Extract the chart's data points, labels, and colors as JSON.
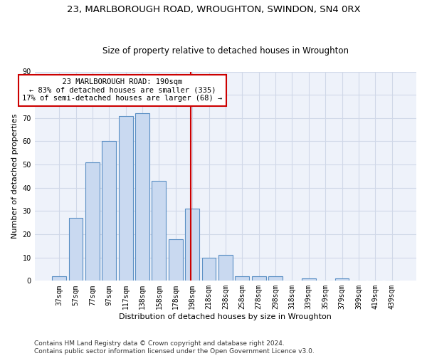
{
  "title1": "23, MARLBOROUGH ROAD, WROUGHTON, SWINDON, SN4 0RX",
  "title2": "Size of property relative to detached houses in Wroughton",
  "xlabel": "Distribution of detached houses by size in Wroughton",
  "ylabel": "Number of detached properties",
  "bar_labels": [
    "37sqm",
    "57sqm",
    "77sqm",
    "97sqm",
    "117sqm",
    "138sqm",
    "158sqm",
    "178sqm",
    "198sqm",
    "218sqm",
    "238sqm",
    "258sqm",
    "278sqm",
    "298sqm",
    "318sqm",
    "339sqm",
    "359sqm",
    "379sqm",
    "399sqm",
    "419sqm",
    "439sqm"
  ],
  "bar_values": [
    2,
    27,
    51,
    60,
    71,
    72,
    43,
    18,
    31,
    10,
    11,
    2,
    2,
    2,
    0,
    1,
    0,
    1,
    0,
    0,
    0
  ],
  "bar_color": "#c9d9f0",
  "bar_edge_color": "#5a8fc4",
  "vline_x": 7.9,
  "vline_color": "#cc0000",
  "annotation_text": "  23 MARLBOROUGH ROAD: 190sqm  \n← 83% of detached houses are smaller (335)\n17% of semi-detached houses are larger (68) →",
  "annotation_box_color": "#cc0000",
  "ylim": [
    0,
    90
  ],
  "yticks": [
    0,
    10,
    20,
    30,
    40,
    50,
    60,
    70,
    80,
    90
  ],
  "grid_color": "#d0d8e8",
  "background_color": "#eef2fa",
  "footer": "Contains HM Land Registry data © Crown copyright and database right 2024.\nContains public sector information licensed under the Open Government Licence v3.0.",
  "title1_fontsize": 9.5,
  "title2_fontsize": 8.5,
  "xlabel_fontsize": 8,
  "ylabel_fontsize": 8,
  "tick_fontsize": 7,
  "annotation_fontsize": 7.5,
  "footer_fontsize": 6.5
}
